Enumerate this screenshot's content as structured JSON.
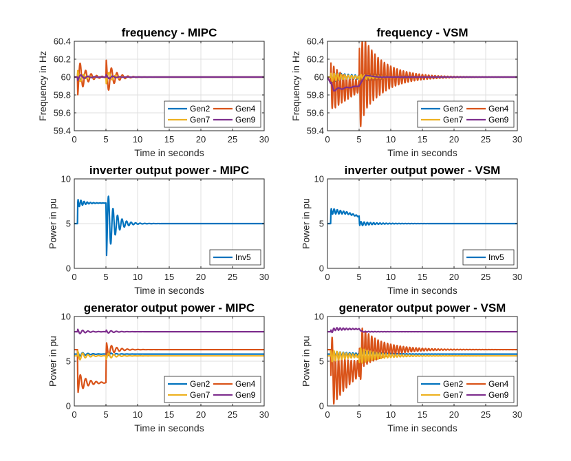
{
  "colors": {
    "gen2": "#0072bd",
    "gen4": "#d95319",
    "gen7": "#edb120",
    "gen9": "#7e2f8e",
    "inv5": "#0072bd"
  },
  "chart_data": [
    {
      "type": "line",
      "title": "frequency - MIPC",
      "xlabel": "Time in seconds",
      "ylabel": "Frequency in Hz",
      "xlim": [
        0,
        30
      ],
      "ylim": [
        59.4,
        60.4
      ],
      "xticks": [
        "0",
        "5",
        "10",
        "15",
        "20",
        "25",
        "30"
      ],
      "yticks": [
        "59.4",
        "59.6",
        "59.8",
        "60",
        "60.2",
        "60.4"
      ],
      "grid": true,
      "legend": "bottom-right",
      "series": [
        {
          "name": "Gen2",
          "color": "#0072bd",
          "final": 60.0,
          "events": [
            {
              "t": 0.5,
              "amp": 0.05,
              "freq": 1.1,
              "decay": 1.1
            },
            {
              "t": 5.0,
              "amp": 0.02,
              "freq": 1.1,
              "decay": 1.1
            }
          ]
        },
        {
          "name": "Gen4",
          "color": "#d95319",
          "final": 60.0,
          "events": [
            {
              "t": 0.5,
              "amp": -0.22,
              "freq": 1.15,
              "decay": 1.2
            },
            {
              "t": 5.0,
              "amp": 0.21,
              "freq": 1.15,
              "decay": 1.2
            }
          ]
        },
        {
          "name": "Gen7",
          "color": "#edb120",
          "final": 60.0,
          "events": [
            {
              "t": 0.5,
              "amp": 0.08,
              "freq": 1.0,
              "decay": 1.0
            },
            {
              "t": 5.0,
              "amp": -0.08,
              "freq": 1.0,
              "decay": 1.0
            }
          ]
        },
        {
          "name": "Gen9",
          "color": "#7e2f8e",
          "final": 60.0,
          "events": [
            {
              "t": 0.5,
              "amp": -0.04,
              "freq": 0.9,
              "decay": 1.0
            },
            {
              "t": 5.0,
              "amp": 0.03,
              "freq": 0.9,
              "decay": 1.0
            }
          ]
        }
      ]
    },
    {
      "type": "line",
      "title": "frequency - VSM",
      "xlabel": "Time in seconds",
      "ylabel": "Frequency in Hz",
      "xlim": [
        0,
        30
      ],
      "ylim": [
        59.4,
        60.4
      ],
      "xticks": [
        "0",
        "5",
        "10",
        "15",
        "20",
        "25",
        "30"
      ],
      "yticks": [
        "59.4",
        "59.6",
        "59.8",
        "60",
        "60.2",
        "60.4"
      ],
      "grid": true,
      "legend": "bottom-right",
      "series": [
        {
          "name": "Gen2",
          "color": "#0072bd",
          "final": 60.0,
          "events": [
            {
              "t": 0.5,
              "amp": 0.06,
              "freq": 1.8,
              "decay": 4
            },
            {
              "t": 5.0,
              "amp": 0.04,
              "freq": 1.8,
              "decay": 4
            }
          ]
        },
        {
          "name": "Gen4",
          "color": "#d95319",
          "final": 60.0,
          "base": [
            [
              0,
              60.0
            ],
            [
              1,
              59.88
            ],
            [
              3,
              59.87
            ],
            [
              5,
              59.9
            ],
            [
              6,
              60.02
            ],
            [
              8,
              60.0
            ],
            [
              30,
              60.0
            ]
          ],
          "events": [
            {
              "t": 0.5,
              "amp": 0.28,
              "freq": 2.0,
              "decay": 3.2
            },
            {
              "t": 5.0,
              "amp": 0.45,
              "freq": 2.0,
              "decay": 3.5
            }
          ]
        },
        {
          "name": "Gen7",
          "color": "#edb120",
          "final": 60.0,
          "events": [
            {
              "t": 0.5,
              "amp": 0.05,
              "freq": 1.8,
              "decay": 3
            },
            {
              "t": 5.0,
              "amp": -0.04,
              "freq": 1.8,
              "decay": 3
            }
          ]
        },
        {
          "name": "Gen9",
          "color": "#7e2f8e",
          "final": 60.0,
          "base": [
            [
              0,
              60.0
            ],
            [
              1,
              59.86
            ],
            [
              3,
              59.88
            ],
            [
              5,
              59.9
            ],
            [
              6,
              60.02
            ],
            [
              8,
              60.0
            ],
            [
              30,
              60.0
            ]
          ],
          "events": [
            {
              "t": 0.5,
              "amp": 0.02,
              "freq": 0.8,
              "decay": 2
            }
          ]
        }
      ]
    },
    {
      "type": "line",
      "title": "inverter output power - MIPC",
      "xlabel": "Time in seconds",
      "ylabel": "Power in pu",
      "xlim": [
        0,
        30
      ],
      "ylim": [
        0,
        10
      ],
      "xticks": [
        "0",
        "5",
        "10",
        "15",
        "20",
        "25",
        "30"
      ],
      "yticks": [
        "0",
        "5",
        "10"
      ],
      "grid": true,
      "legend": "bottom-right",
      "series": [
        {
          "name": "Inv5",
          "color": "#0072bd",
          "final": 5.0,
          "base": [
            [
              0,
              5.0
            ],
            [
              0.5,
              5.0
            ],
            [
              0.55,
              7.3
            ],
            [
              5.0,
              7.3
            ],
            [
              5.05,
              5.0
            ],
            [
              30,
              5.0
            ]
          ],
          "events": [
            {
              "t": 0.55,
              "amp": 0.5,
              "freq": 2.0,
              "decay": 1.0
            },
            {
              "t": 5.05,
              "amp": -4.1,
              "freq": 1.4,
              "decay": 1.2
            }
          ]
        }
      ]
    },
    {
      "type": "line",
      "title": "inverter output power - VSM",
      "xlabel": "Time in seconds",
      "ylabel": "Power in pu",
      "xlim": [
        0,
        30
      ],
      "ylim": [
        0,
        10
      ],
      "xticks": [
        "0",
        "5",
        "10",
        "15",
        "20",
        "25",
        "30"
      ],
      "yticks": [
        "0",
        "5",
        "10"
      ],
      "grid": true,
      "legend": "bottom-right",
      "series": [
        {
          "name": "Inv5",
          "color": "#0072bd",
          "final": 5.0,
          "base": [
            [
              0,
              5.0
            ],
            [
              0.5,
              5.0
            ],
            [
              0.55,
              6.4
            ],
            [
              3,
              6.2
            ],
            [
              5.0,
              5.8
            ],
            [
              5.05,
              5.0
            ],
            [
              30,
              5.0
            ]
          ],
          "events": [
            {
              "t": 0.55,
              "amp": 0.35,
              "freq": 2.0,
              "decay": 2.5
            },
            {
              "t": 5.05,
              "amp": -0.3,
              "freq": 2.0,
              "decay": 2.5
            }
          ]
        }
      ]
    },
    {
      "type": "line",
      "title": "generator output power - MIPC",
      "xlabel": "Time in seconds",
      "ylabel": "Power in pu",
      "xlim": [
        0,
        30
      ],
      "ylim": [
        0,
        10
      ],
      "xticks": [
        "0",
        "5",
        "10",
        "15",
        "20",
        "25",
        "30"
      ],
      "yticks": [
        "0",
        "5",
        "10"
      ],
      "grid": true,
      "legend": "bottom-right",
      "series": [
        {
          "name": "Gen2",
          "color": "#0072bd",
          "final": 5.8,
          "base": [
            [
              0,
              5.8
            ],
            [
              30,
              5.8
            ]
          ],
          "events": [
            {
              "t": 0.5,
              "amp": 0.3,
              "freq": 1.2,
              "decay": 1.2
            },
            {
              "t": 5.0,
              "amp": 0.2,
              "freq": 1.2,
              "decay": 1.2
            }
          ]
        },
        {
          "name": "Gen4",
          "color": "#d95319",
          "final": 6.3,
          "base": [
            [
              0,
              6.3
            ],
            [
              0.5,
              6.3
            ],
            [
              0.55,
              2.6
            ],
            [
              5.0,
              2.6
            ],
            [
              5.05,
              6.3
            ],
            [
              30,
              6.3
            ]
          ],
          "events": [
            {
              "t": 0.55,
              "amp": -1.2,
              "freq": 1.2,
              "decay": 1.3
            },
            {
              "t": 5.05,
              "amp": 0.8,
              "freq": 1.2,
              "decay": 1.3
            }
          ]
        },
        {
          "name": "Gen7",
          "color": "#edb120",
          "final": 5.6,
          "base": [
            [
              0,
              5.6
            ],
            [
              30,
              5.6
            ]
          ],
          "events": [
            {
              "t": 0.5,
              "amp": 0.6,
              "freq": 1.2,
              "decay": 1.2
            },
            {
              "t": 5.0,
              "amp": -0.4,
              "freq": 1.2,
              "decay": 1.2
            }
          ]
        },
        {
          "name": "Gen9",
          "color": "#7e2f8e",
          "final": 8.3,
          "base": [
            [
              0,
              8.3
            ],
            [
              30,
              8.3
            ]
          ],
          "events": [
            {
              "t": 0.5,
              "amp": 0.3,
              "freq": 1.2,
              "decay": 1.2
            },
            {
              "t": 5.0,
              "amp": 0.2,
              "freq": 1.2,
              "decay": 1.2
            }
          ]
        }
      ]
    },
    {
      "type": "line",
      "title": "generator output power - VSM",
      "xlabel": "Time in seconds",
      "ylabel": "Power in pu",
      "xlim": [
        0,
        30
      ],
      "ylim": [
        0,
        10
      ],
      "xticks": [
        "0",
        "5",
        "10",
        "15",
        "20",
        "25",
        "30"
      ],
      "yticks": [
        "0",
        "5",
        "10"
      ],
      "grid": true,
      "legend": "bottom-right",
      "series": [
        {
          "name": "Gen2",
          "color": "#0072bd",
          "final": 5.8,
          "base": [
            [
              0,
              5.8
            ],
            [
              30,
              5.8
            ]
          ],
          "events": [
            {
              "t": 0.5,
              "amp": 0.4,
              "freq": 2.0,
              "decay": 3
            },
            {
              "t": 5.0,
              "amp": 0.3,
              "freq": 2.0,
              "decay": 3
            }
          ]
        },
        {
          "name": "Gen4",
          "color": "#d95319",
          "final": 6.3,
          "base": [
            [
              0,
              6.3
            ],
            [
              0.5,
              6.3
            ],
            [
              1.0,
              3.0
            ],
            [
              3,
              3.6
            ],
            [
              5.0,
              4.2
            ],
            [
              5.5,
              6.5
            ],
            [
              8,
              6.3
            ],
            [
              30,
              6.3
            ]
          ],
          "events": [
            {
              "t": 0.5,
              "amp": -3.2,
              "freq": 2.0,
              "decay": 3.5
            },
            {
              "t": 5.0,
              "amp": 3.4,
              "freq": 2.0,
              "decay": 3.5
            }
          ]
        },
        {
          "name": "Gen7",
          "color": "#edb120",
          "final": 5.6,
          "base": [
            [
              0,
              5.6
            ],
            [
              30,
              5.6
            ]
          ],
          "events": [
            {
              "t": 0.5,
              "amp": 0.7,
              "freq": 2.0,
              "decay": 3
            },
            {
              "t": 5.0,
              "amp": -1.1,
              "freq": 2.0,
              "decay": 3
            }
          ]
        },
        {
          "name": "Gen9",
          "color": "#7e2f8e",
          "final": 8.3,
          "base": [
            [
              0,
              8.3
            ],
            [
              0.5,
              8.3
            ],
            [
              1.2,
              8.6
            ],
            [
              5.0,
              8.6
            ],
            [
              5.5,
              8.3
            ],
            [
              30,
              8.3
            ]
          ],
          "events": [
            {
              "t": 0.5,
              "amp": 0.2,
              "freq": 2.0,
              "decay": 3
            }
          ]
        }
      ]
    }
  ]
}
